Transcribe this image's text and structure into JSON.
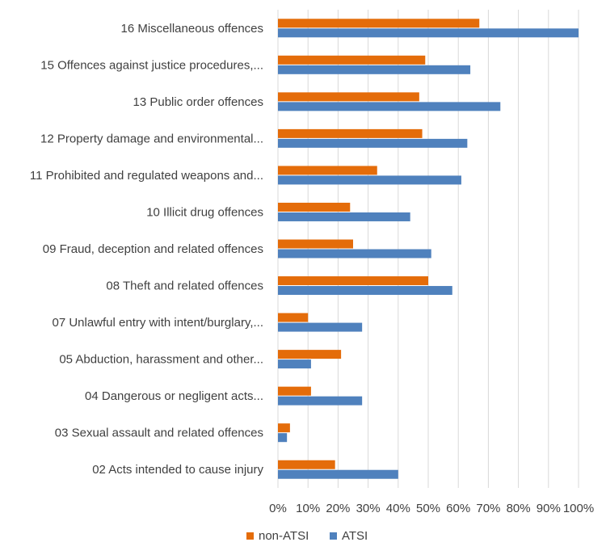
{
  "chart_data": {
    "type": "bar",
    "orientation": "horizontal",
    "title": "",
    "xlabel": "",
    "ylabel": "",
    "xlim": [
      0,
      1
    ],
    "grid": true,
    "legend_position": "bottom",
    "categories": [
      "16 Miscellaneous offences",
      "15 Offences against justice procedures,...",
      "13 Public order offences",
      "12 Property damage and environmental...",
      "11 Prohibited and regulated weapons and...",
      "10 Illicit drug offences",
      "09 Fraud, deception and related offences",
      "08 Theft and related offences",
      "07 Unlawful entry with intent/burglary,...",
      "05 Abduction, harassment and other...",
      "04 Dangerous or negligent acts...",
      "03 Sexual assault and related offences",
      "02 Acts intended to cause injury"
    ],
    "x_ticks": [
      "0%",
      "10%",
      "20%",
      "30%",
      "40%",
      "50%",
      "60%",
      "70%",
      "80%",
      "90%",
      "100%"
    ],
    "series": [
      {
        "name": "non-ATSI",
        "color": "#E46C0A",
        "values": [
          0.67,
          0.49,
          0.47,
          0.48,
          0.33,
          0.24,
          0.25,
          0.5,
          0.1,
          0.21,
          0.11,
          0.04,
          0.19
        ]
      },
      {
        "name": "ATSI",
        "color": "#4F81BD",
        "values": [
          1.0,
          0.64,
          0.74,
          0.63,
          0.61,
          0.44,
          0.51,
          0.58,
          0.28,
          0.11,
          0.28,
          0.03,
          0.4
        ]
      }
    ]
  }
}
